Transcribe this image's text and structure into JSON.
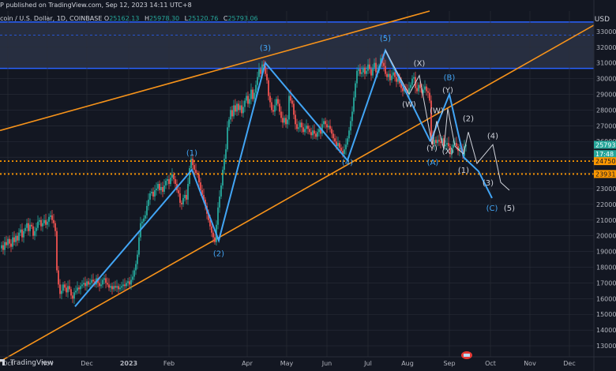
{
  "header": {
    "published": "P published on TradingView.com, Sep 12, 2023 14:11 UTC+8",
    "symbol": "coin / U.S. Dollar, 1D, COINBASE",
    "ohlc": [
      {
        "label": "O",
        "value": "25162.13"
      },
      {
        "label": "H",
        "value": "25978.30"
      },
      {
        "label": "L",
        "value": "25120.76"
      },
      {
        "label": "C",
        "value": "25793.06"
      }
    ]
  },
  "footer": {
    "brand": "TradingView"
  },
  "colors": {
    "background": "#131722",
    "bull": "#26a69a",
    "bear": "#ef5350",
    "wave": "#42a5f5",
    "wave_white": "#d1d4dc",
    "channel": "#f7931a",
    "level": "#ff9800",
    "zone": "#2c3345",
    "zone_border": "#2962ff"
  },
  "chart_data": {
    "type": "candlestick",
    "title": "",
    "currency_label": "USD",
    "x_ticks": [
      "Oct",
      "Nov",
      "Dec",
      "2023",
      "Feb",
      "Apr",
      "May",
      "Jun",
      "Jul",
      "Aug",
      "Sep",
      "Oct",
      "Nov",
      "Dec"
    ],
    "y_ticks": [
      13000,
      14000,
      15000,
      16000,
      17000,
      18000,
      19000,
      20000,
      21000,
      22000,
      23000,
      24000,
      25000,
      26000,
      27000,
      28000,
      29000,
      30000,
      31000,
      32000,
      33000
    ],
    "ylim": [
      12300,
      34300
    ],
    "price_labels": [
      {
        "value": 25793,
        "text": "25793",
        "kind": "last"
      },
      {
        "value": 25200,
        "text": "17:48",
        "kind": "timer"
      },
      {
        "value": 24750,
        "text": "24750",
        "kind": "level"
      },
      {
        "value": 23931,
        "text": "23931",
        "kind": "level"
      }
    ],
    "horizontal_levels": [
      24750,
      23931
    ],
    "resistance_zone": [
      30650,
      33600
    ],
    "closes": [
      [
        0,
        19200
      ],
      [
        2,
        19400
      ],
      [
        4,
        19100
      ],
      [
        6,
        19600
      ],
      [
        8,
        19400
      ],
      [
        10,
        19800
      ],
      [
        12,
        19500
      ],
      [
        14,
        19300
      ],
      [
        16,
        19900
      ],
      [
        18,
        19600
      ],
      [
        20,
        20000
      ],
      [
        22,
        19700
      ],
      [
        24,
        20200
      ],
      [
        26,
        20400
      ],
      [
        28,
        19900
      ],
      [
        30,
        20300
      ],
      [
        32,
        20500
      ],
      [
        34,
        20800
      ],
      [
        36,
        20300
      ],
      [
        38,
        20700
      ],
      [
        40,
        20600
      ],
      [
        42,
        20000
      ],
      [
        44,
        20300
      ],
      [
        46,
        20500
      ],
      [
        48,
        20900
      ],
      [
        50,
        21000
      ],
      [
        52,
        20600
      ],
      [
        54,
        20800
      ],
      [
        56,
        21000
      ],
      [
        58,
        20700
      ],
      [
        60,
        20900
      ],
      [
        62,
        21200
      ],
      [
        64,
        21300
      ],
      [
        66,
        21000
      ],
      [
        68,
        20800
      ],
      [
        70,
        20300
      ],
      [
        72,
        17800
      ],
      [
        74,
        16900
      ],
      [
        76,
        16300
      ],
      [
        78,
        16500
      ],
      [
        80,
        16900
      ],
      [
        82,
        16700
      ],
      [
        84,
        16400
      ],
      [
        86,
        16800
      ],
      [
        88,
        16600
      ],
      [
        90,
        16200
      ],
      [
        92,
        16000
      ],
      [
        94,
        16400
      ],
      [
        96,
        16500
      ],
      [
        98,
        16700
      ],
      [
        100,
        16600
      ],
      [
        102,
        16800
      ],
      [
        104,
        16900
      ],
      [
        106,
        17000
      ],
      [
        108,
        16800
      ],
      [
        110,
        17100
      ],
      [
        112,
        16900
      ],
      [
        114,
        17000
      ],
      [
        116,
        17200
      ],
      [
        118,
        17100
      ],
      [
        120,
        16900
      ],
      [
        122,
        17300
      ],
      [
        124,
        17000
      ],
      [
        126,
        16800
      ],
      [
        128,
        16900
      ],
      [
        130,
        17200
      ],
      [
        132,
        17300
      ],
      [
        134,
        17000
      ],
      [
        136,
        16900
      ],
      [
        138,
        16700
      ],
      [
        140,
        16800
      ],
      [
        142,
        16600
      ],
      [
        144,
        16800
      ],
      [
        146,
        16700
      ],
      [
        148,
        16800
      ],
      [
        150,
        16600
      ],
      [
        152,
        16700
      ],
      [
        154,
        16800
      ],
      [
        156,
        16900
      ],
      [
        158,
        16800
      ],
      [
        160,
        17000
      ],
      [
        162,
        17100
      ],
      [
        164,
        16900
      ],
      [
        166,
        17200
      ],
      [
        168,
        17400
      ],
      [
        170,
        17800
      ],
      [
        172,
        18200
      ],
      [
        174,
        18800
      ],
      [
        176,
        19900
      ],
      [
        178,
        20800
      ],
      [
        180,
        20900
      ],
      [
        182,
        21100
      ],
      [
        184,
        21300
      ],
      [
        186,
        21900
      ],
      [
        188,
        22300
      ],
      [
        190,
        22700
      ],
      [
        192,
        22800
      ],
      [
        194,
        22500
      ],
      [
        196,
        22900
      ],
      [
        198,
        23000
      ],
      [
        200,
        23300
      ],
      [
        202,
        22900
      ],
      [
        204,
        23100
      ],
      [
        206,
        22800
      ],
      [
        208,
        23200
      ],
      [
        210,
        23500
      ],
      [
        212,
        23600
      ],
      [
        214,
        23300
      ],
      [
        216,
        23700
      ],
      [
        218,
        23900
      ],
      [
        220,
        23600
      ],
      [
        222,
        23300
      ],
      [
        224,
        22900
      ],
      [
        226,
        22700
      ],
      [
        228,
        22100
      ],
      [
        230,
        22000
      ],
      [
        232,
        22400
      ],
      [
        234,
        22600
      ],
      [
        236,
        22300
      ],
      [
        238,
        23300
      ],
      [
        240,
        24300
      ],
      [
        242,
        24900
      ],
      [
        244,
        24500
      ],
      [
        246,
        24200
      ],
      [
        248,
        24000
      ],
      [
        250,
        23900
      ],
      [
        252,
        23400
      ],
      [
        254,
        22900
      ],
      [
        256,
        22600
      ],
      [
        258,
        22300
      ],
      [
        260,
        21900
      ],
      [
        262,
        21400
      ],
      [
        264,
        21000
      ],
      [
        266,
        20600
      ],
      [
        268,
        20200
      ],
      [
        270,
        19900
      ],
      [
        272,
        19600
      ],
      [
        274,
        20700
      ],
      [
        276,
        21800
      ],
      [
        278,
        22500
      ],
      [
        280,
        23200
      ],
      [
        282,
        24200
      ],
      [
        284,
        24900
      ],
      [
        286,
        25500
      ],
      [
        288,
        26900
      ],
      [
        290,
        27400
      ],
      [
        292,
        28000
      ],
      [
        294,
        27600
      ],
      [
        296,
        28300
      ],
      [
        298,
        27900
      ],
      [
        300,
        28400
      ],
      [
        302,
        28000
      ],
      [
        304,
        28300
      ],
      [
        306,
        27800
      ],
      [
        308,
        28200
      ],
      [
        310,
        28600
      ],
      [
        312,
        28900
      ],
      [
        314,
        28400
      ],
      [
        316,
        28700
      ],
      [
        318,
        29300
      ],
      [
        320,
        28700
      ],
      [
        322,
        29100
      ],
      [
        324,
        29600
      ],
      [
        326,
        30100
      ],
      [
        328,
        30600
      ],
      [
        330,
        30300
      ],
      [
        332,
        30900
      ],
      [
        334,
        30800
      ],
      [
        336,
        30300
      ],
      [
        338,
        29900
      ],
      [
        340,
        28900
      ],
      [
        342,
        28500
      ],
      [
        344,
        28000
      ],
      [
        346,
        27900
      ],
      [
        348,
        28300
      ],
      [
        350,
        28700
      ],
      [
        352,
        28400
      ],
      [
        354,
        27900
      ],
      [
        356,
        27500
      ],
      [
        358,
        27200
      ],
      [
        360,
        27500
      ],
      [
        362,
        27100
      ],
      [
        364,
        27400
      ],
      [
        366,
        28900
      ],
      [
        368,
        28600
      ],
      [
        370,
        28400
      ],
      [
        372,
        27700
      ],
      [
        374,
        27100
      ],
      [
        376,
        26800
      ],
      [
        378,
        26900
      ],
      [
        380,
        27200
      ],
      [
        382,
        26900
      ],
      [
        384,
        26600
      ],
      [
        386,
        26800
      ],
      [
        388,
        27000
      ],
      [
        390,
        26800
      ],
      [
        392,
        26600
      ],
      [
        394,
        26400
      ],
      [
        396,
        26700
      ],
      [
        398,
        26500
      ],
      [
        400,
        26300
      ],
      [
        402,
        26600
      ],
      [
        404,
        26800
      ],
      [
        406,
        26500
      ],
      [
        408,
        27100
      ],
      [
        410,
        27300
      ],
      [
        412,
        27100
      ],
      [
        414,
        26900
      ],
      [
        416,
        27000
      ],
      [
        418,
        26800
      ],
      [
        420,
        26500
      ],
      [
        422,
        26200
      ],
      [
        424,
        26000
      ],
      [
        426,
        25700
      ],
      [
        428,
        25900
      ],
      [
        430,
        25600
      ],
      [
        432,
        25400
      ],
      [
        434,
        25200
      ],
      [
        436,
        25500
      ],
      [
        438,
        25800
      ],
      [
        440,
        26200
      ],
      [
        442,
        26700
      ],
      [
        444,
        27300
      ],
      [
        446,
        27900
      ],
      [
        448,
        28800
      ],
      [
        450,
        29700
      ],
      [
        452,
        30500
      ],
      [
        454,
        30600
      ],
      [
        456,
        30300
      ],
      [
        458,
        30400
      ],
      [
        460,
        30700
      ],
      [
        462,
        30300
      ],
      [
        464,
        30500
      ],
      [
        466,
        30900
      ],
      [
        468,
        30600
      ],
      [
        470,
        30200
      ],
      [
        472,
        30700
      ],
      [
        474,
        31000
      ],
      [
        476,
        30400
      ],
      [
        478,
        30500
      ],
      [
        480,
        30800
      ],
      [
        482,
        31300
      ],
      [
        484,
        31000
      ],
      [
        486,
        30800
      ],
      [
        488,
        30300
      ],
      [
        490,
        30100
      ],
      [
        492,
        30300
      ],
      [
        494,
        29900
      ],
      [
        496,
        30200
      ],
      [
        498,
        30400
      ],
      [
        500,
        30100
      ],
      [
        502,
        29800
      ],
      [
        504,
        30000
      ],
      [
        506,
        29700
      ],
      [
        508,
        29400
      ],
      [
        510,
        29200
      ],
      [
        512,
        29400
      ],
      [
        514,
        29300
      ],
      [
        516,
        29100
      ],
      [
        518,
        29400
      ],
      [
        520,
        29600
      ],
      [
        522,
        30000
      ],
      [
        524,
        30100
      ],
      [
        526,
        29400
      ],
      [
        528,
        29200
      ],
      [
        530,
        29600
      ],
      [
        532,
        29400
      ],
      [
        534,
        29100
      ],
      [
        536,
        29300
      ],
      [
        538,
        29500
      ],
      [
        540,
        29200
      ],
      [
        542,
        29100
      ],
      [
        544,
        28600
      ],
      [
        546,
        26300
      ],
      [
        548,
        25800
      ],
      [
        550,
        26100
      ],
      [
        552,
        25900
      ],
      [
        554,
        26100
      ],
      [
        556,
        26000
      ],
      [
        558,
        25900
      ],
      [
        560,
        26200
      ],
      [
        562,
        25700
      ],
      [
        564,
        25800
      ],
      [
        566,
        25900
      ],
      [
        568,
        25700
      ],
      [
        570,
        25200
      ],
      [
        572,
        25600
      ],
      [
        574,
        25800
      ],
      [
        576,
        25900
      ],
      [
        578,
        25700
      ],
      [
        580,
        25400
      ],
      [
        582,
        25600
      ],
      [
        584,
        25500
      ],
      [
        586,
        25100
      ],
      [
        588,
        25700
      ],
      [
        590,
        25793
      ]
    ],
    "annotations": [
      {
        "text": "(1)",
        "x": 243,
        "y": 25100,
        "color": "wave"
      },
      {
        "text": "(2)",
        "x": 277,
        "y": 18700,
        "color": "wave"
      },
      {
        "text": "(3)",
        "x": 336,
        "y": 31800,
        "color": "wave"
      },
      {
        "text": "(4)",
        "x": 440,
        "y": 24500,
        "color": "wave"
      },
      {
        "text": "(5)",
        "x": 488,
        "y": 32400,
        "color": "wave"
      },
      {
        "text": "(X)",
        "x": 531,
        "y": 30800,
        "color": "wave_white"
      },
      {
        "text": "(W)",
        "x": 518,
        "y": 28200,
        "color": "wave_white"
      },
      {
        "text": "(Y)",
        "x": 567,
        "y": 29100,
        "color": "wave_white"
      },
      {
        "text": "(W)",
        "x": 553,
        "y": 27800,
        "color": "wave_white"
      },
      {
        "text": "(B)",
        "x": 569,
        "y": 29900,
        "color": "wave"
      },
      {
        "text": "(2)",
        "x": 593,
        "y": 27300,
        "color": "wave_white"
      },
      {
        "text": "(Y)",
        "x": 547,
        "y": 25400,
        "color": "wave_white"
      },
      {
        "text": "(X)",
        "x": 567,
        "y": 25200,
        "color": "wave_white"
      },
      {
        "text": "(A)",
        "x": 548,
        "y": 24500,
        "color": "wave"
      },
      {
        "text": "(4)",
        "x": 624,
        "y": 26200,
        "color": "wave_white"
      },
      {
        "text": "(1)",
        "x": 587,
        "y": 24000,
        "color": "wave_white"
      },
      {
        "text": "(3)",
        "x": 618,
        "y": 23200,
        "color": "wave_white"
      },
      {
        "text": "(C)",
        "x": 623,
        "y": 21600,
        "color": "wave"
      },
      {
        "text": "(5)",
        "x": 645,
        "y": 21600,
        "color": "wave_white"
      }
    ],
    "wave_lines": [
      {
        "color": "wave",
        "points": [
          [
            95,
            15500
          ],
          [
            243,
            24200
          ],
          [
            277,
            19700
          ],
          [
            336,
            31000
          ],
          [
            440,
            24800
          ],
          [
            488,
            31800
          ],
          [
            545,
            26000
          ]
        ]
      },
      {
        "color": "wave",
        "points": [
          [
            545,
            26000
          ],
          [
            569,
            29000
          ],
          [
            587,
            25000
          ],
          [
            606,
            24100
          ],
          [
            623,
            22400
          ]
        ]
      },
      {
        "color": "wave_white",
        "points": [
          [
            488,
            31800
          ],
          [
            518,
            29000
          ],
          [
            531,
            30200
          ],
          [
            547,
            25800
          ],
          [
            553,
            27300
          ],
          [
            562,
            25500
          ],
          [
            567,
            28100
          ],
          [
            576,
            25700
          ],
          [
            587,
            25200
          ]
        ]
      },
      {
        "color": "wave_white",
        "points": [
          [
            587,
            25200
          ],
          [
            593,
            26600
          ],
          [
            604,
            24600
          ],
          [
            624,
            25800
          ],
          [
            634,
            23400
          ],
          [
            645,
            22900
          ]
        ]
      }
    ],
    "channel_lines": [
      {
        "points": [
          [
            0,
            26700
          ],
          [
            544,
            34300
          ]
        ]
      },
      {
        "points": [
          [
            0,
            12000
          ],
          [
            780,
            34200
          ]
        ]
      }
    ],
    "grid": true
  }
}
